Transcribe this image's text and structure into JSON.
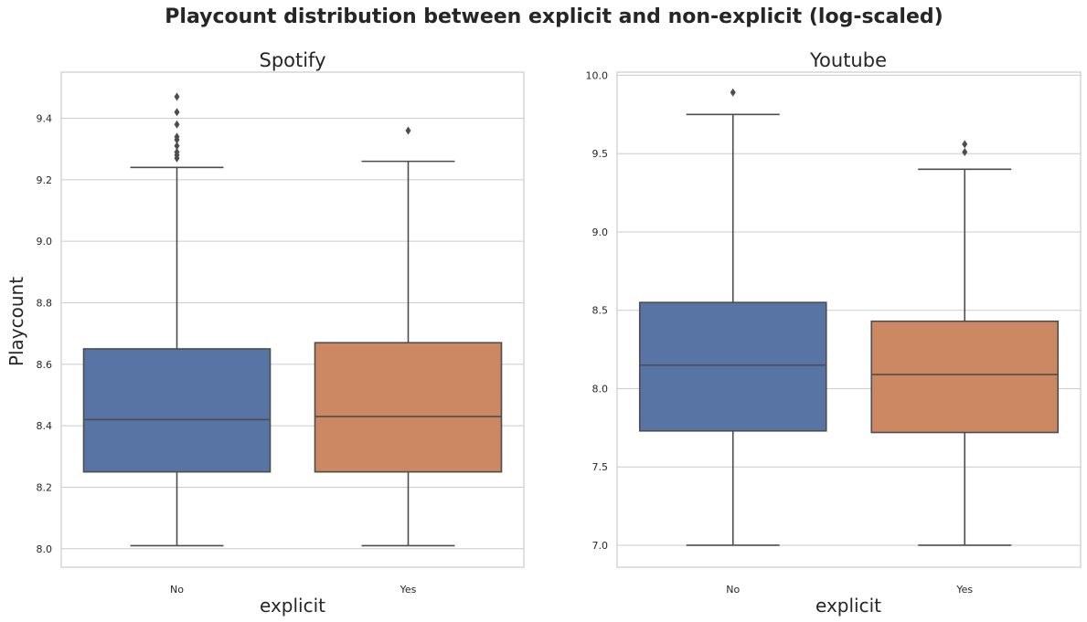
{
  "figure": {
    "title": "Playcount distribution between explicit and non-explicit (log-scaled)"
  },
  "colors": {
    "no": "#5874a5",
    "yes": "#cc8863",
    "line": "#4d4d4d",
    "grid": "#cccccc"
  },
  "chart_data": [
    {
      "type": "box",
      "title": "Spotify",
      "xlabel": "explicit",
      "ylabel": "Playcount",
      "categories": [
        "No",
        "Yes"
      ],
      "ylim": [
        7.94,
        9.55
      ],
      "yticks": [
        8.0,
        8.2,
        8.4,
        8.6,
        8.8,
        9.0,
        9.2,
        9.4
      ],
      "ytick_labels": [
        "8.0",
        "8.2",
        "8.4",
        "8.6",
        "8.8",
        "9.0",
        "9.2",
        "9.4"
      ],
      "grid": true,
      "boxes": [
        {
          "category": "No",
          "whisker_low": 8.01,
          "q1": 8.25,
          "median": 8.42,
          "q3": 8.65,
          "whisker_high": 9.24,
          "fliers": [
            9.27,
            9.28,
            9.29,
            9.31,
            9.33,
            9.34,
            9.38,
            9.42,
            9.47
          ]
        },
        {
          "category": "Yes",
          "whisker_low": 8.01,
          "q1": 8.25,
          "median": 8.43,
          "q3": 8.67,
          "whisker_high": 9.26,
          "fliers": [
            9.36
          ]
        }
      ]
    },
    {
      "type": "box",
      "title": "Youtube",
      "xlabel": "explicit",
      "ylabel": "",
      "categories": [
        "No",
        "Yes"
      ],
      "ylim": [
        6.86,
        10.02
      ],
      "yticks": [
        7.0,
        7.5,
        8.0,
        8.5,
        9.0,
        9.5,
        10.0
      ],
      "ytick_labels": [
        "7.0",
        "7.5",
        "8.0",
        "8.5",
        "9.0",
        "9.5",
        "10.0"
      ],
      "grid": true,
      "boxes": [
        {
          "category": "No",
          "whisker_low": 7.0,
          "q1": 7.73,
          "median": 8.15,
          "q3": 8.55,
          "whisker_high": 9.75,
          "fliers": [
            9.89
          ]
        },
        {
          "category": "Yes",
          "whisker_low": 7.0,
          "q1": 7.72,
          "median": 8.09,
          "q3": 8.43,
          "whisker_high": 9.4,
          "fliers": [
            9.51,
            9.56
          ]
        }
      ]
    }
  ]
}
